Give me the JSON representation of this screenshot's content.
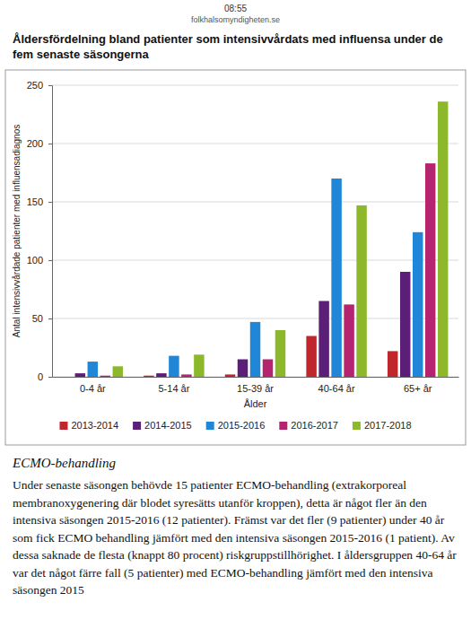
{
  "browser": {
    "time": "08:55",
    "url": "folkhalsomyndigheten.se"
  },
  "chart_data": {
    "type": "bar",
    "title": "Åldersfördelning bland patienter som intensivvårdats med influensa under de fem senaste säsongerna",
    "x_label": "Ålder",
    "y_label": "Antal intensivvårdade patienter med influensadiagnos",
    "categories": [
      "0-4 år",
      "5-14 år",
      "15-39 år",
      "40-64 år",
      "65+ år"
    ],
    "series": [
      {
        "name": "2013-2014",
        "color": "#c0272d",
        "values": [
          0,
          1,
          2,
          35,
          22
        ]
      },
      {
        "name": "2014-2015",
        "color": "#5b1f78",
        "values": [
          3,
          3,
          15,
          65,
          90
        ]
      },
      {
        "name": "2015-2016",
        "color": "#1f86d8",
        "values": [
          13,
          18,
          47,
          170,
          124
        ]
      },
      {
        "name": "2016-2017",
        "color": "#b5256f",
        "values": [
          1,
          2,
          15,
          62,
          183
        ]
      },
      {
        "name": "2017-2018",
        "color": "#8db82c",
        "values": [
          9,
          19,
          40,
          147,
          236
        ]
      }
    ],
    "ylim": [
      0,
      250
    ],
    "yticks": [
      0,
      50,
      100,
      150,
      200,
      250
    ],
    "grid": true,
    "legend": "bottom"
  },
  "section": {
    "heading": "ECMO-behandling",
    "paragraph": "Under senaste säsongen behövde 15 patienter ECMO-behandling (extrakorporeal membranoxygenering där blodet syresätts utanför kroppen), detta är något fler än den intensiva säsongen 2015-2016 (12 patienter). Främst var det fler (9 patienter) under 40 år som fick ECMO behandling jämfört med den intensiva säsongen 2015-2016 (1 patient). Av dessa saknade de flesta (knappt 80 procent) riskgruppstillhörighet. I åldersgruppen 40-64 år var det något färre fall (5 patienter) med ECMO-behandling jämfört med den intensiva säsongen 2015"
  }
}
